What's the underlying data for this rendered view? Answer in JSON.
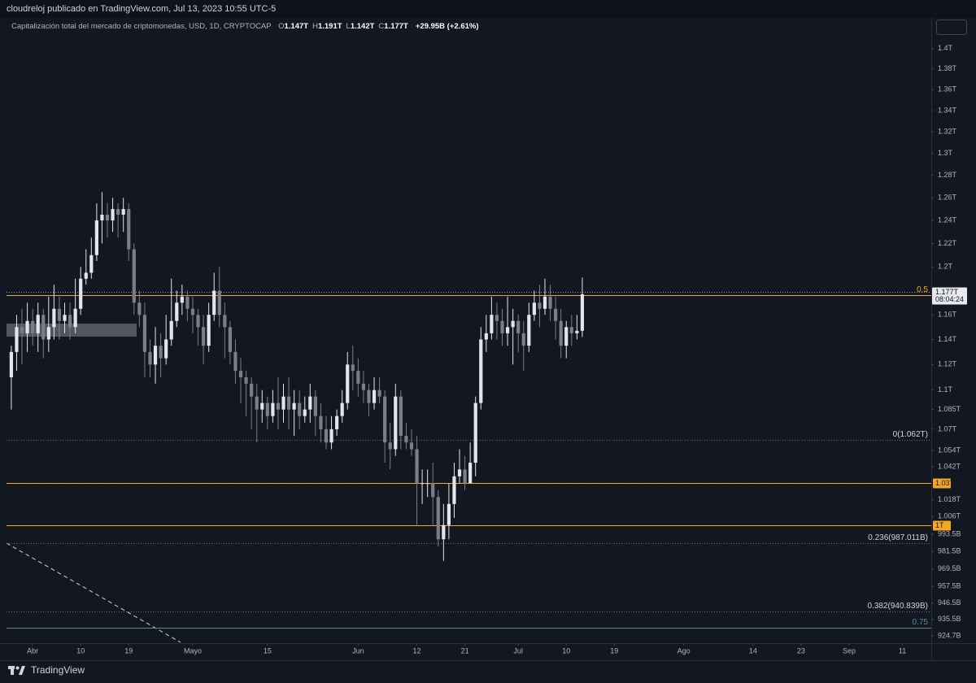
{
  "header": {
    "published": "cloudreloj publicado en TradingView.com, Jul 13, 2023 10:55 UTC-5"
  },
  "footer": {
    "brand": "TradingView"
  },
  "chart_data": {
    "type": "candlestick",
    "legend": {
      "symbol": "Capitalización total del mercado de criptomonedas, USD, 1D, CRYPTOCAP",
      "ohlc": [
        {
          "label": "O",
          "value": "1.147T"
        },
        {
          "label": "H",
          "value": "1.191T"
        },
        {
          "label": "L",
          "value": "1.142T"
        },
        {
          "label": "C",
          "value": "1.177T"
        }
      ],
      "change": "+29.95B (+2.61%)"
    },
    "log_scale": true,
    "up_color": "#e3e5ea",
    "down_color": "#7b7e88",
    "xlim": [
      -4.9,
      168.4
    ],
    "xticks": [
      {
        "value": 0,
        "label": "Abr"
      },
      {
        "value": 9,
        "label": "10"
      },
      {
        "value": 18,
        "label": "19"
      },
      {
        "value": 30,
        "label": "Mayo"
      },
      {
        "value": 44,
        "label": "15"
      },
      {
        "value": 61,
        "label": "Jun"
      },
      {
        "value": 72,
        "label": "12"
      },
      {
        "value": 81,
        "label": "21"
      },
      {
        "value": 91,
        "label": "Jul"
      },
      {
        "value": 100,
        "label": "10"
      },
      {
        "value": 109,
        "label": "19"
      },
      {
        "value": 122,
        "label": "Ago"
      },
      {
        "value": 135,
        "label": "14"
      },
      {
        "value": 144,
        "label": "23"
      },
      {
        "value": 153,
        "label": "Sep"
      },
      {
        "value": 163,
        "label": "11"
      }
    ],
    "ylim": [
      920.5,
      1429
    ],
    "yticks": [
      {
        "value": 1400,
        "label": "1.4T"
      },
      {
        "value": 1380,
        "label": "1.38T"
      },
      {
        "value": 1360,
        "label": "1.36T"
      },
      {
        "value": 1340,
        "label": "1.34T"
      },
      {
        "value": 1320,
        "label": "1.32T"
      },
      {
        "value": 1300,
        "label": "1.3T"
      },
      {
        "value": 1280,
        "label": "1.28T"
      },
      {
        "value": 1260,
        "label": "1.26T"
      },
      {
        "value": 1240,
        "label": "1.24T"
      },
      {
        "value": 1220,
        "label": "1.22T"
      },
      {
        "value": 1200,
        "label": "1.2T"
      },
      {
        "value": 1160,
        "label": "1.16T"
      },
      {
        "value": 1140,
        "label": "1.14T"
      },
      {
        "value": 1120,
        "label": "1.12T"
      },
      {
        "value": 1100,
        "label": "1.1T"
      },
      {
        "value": 1085,
        "label": "1.085T"
      },
      {
        "value": 1070,
        "label": "1.07T"
      },
      {
        "value": 1054,
        "label": "1.054T"
      },
      {
        "value": 1042,
        "label": "1.042T"
      },
      {
        "value": 1018,
        "label": "1.018T"
      },
      {
        "value": 1006,
        "label": "1.006T"
      },
      {
        "value": 993.5,
        "label": "993.5B"
      },
      {
        "value": 981.5,
        "label": "981.5B"
      },
      {
        "value": 969.5,
        "label": "969.5B"
      },
      {
        "value": 957.5,
        "label": "957.5B"
      },
      {
        "value": 946.5,
        "label": "946.5B"
      },
      {
        "value": 935.5,
        "label": "935.5B"
      },
      {
        "value": 924.7,
        "label": "924.7B"
      }
    ],
    "levels": [
      {
        "label": "0.5",
        "value": 1176,
        "color": "#f5a623",
        "style": "solid",
        "label_style": "inline"
      },
      {
        "label": "0(1.062T)",
        "value": 1062,
        "color": "#6b6e78",
        "style": "dotted",
        "label_style": "inline"
      },
      {
        "label": "1.03T",
        "value": 1030,
        "color": "#f5a623",
        "style": "solid",
        "label_style": "box"
      },
      {
        "label": "1T",
        "value": 1000,
        "color": "#f5a623",
        "style": "solid",
        "label_style": "box"
      },
      {
        "label": "0.236(987.011B)",
        "value": 987.011,
        "color": "#6b6e78",
        "style": "dotted",
        "label_style": "inline"
      },
      {
        "label": "0.382(940.839B)",
        "value": 940.839,
        "color": "#6b6e78",
        "style": "dotted",
        "label_style": "inline"
      },
      {
        "label": "0.75",
        "value": 930,
        "color": "#5d8a93",
        "style": "solid",
        "label_style": "inline"
      }
    ],
    "last_price": {
      "value": 1177,
      "label": "1.177T",
      "countdown": "08:04:24"
    },
    "x": [
      -4,
      -3,
      -2,
      -1,
      0,
      1,
      2,
      3,
      4,
      5,
      6,
      7,
      8,
      9,
      10,
      11,
      12,
      13,
      14,
      15,
      16,
      17,
      18,
      19,
      20,
      21,
      22,
      23,
      24,
      25,
      26,
      27,
      28,
      29,
      30,
      31,
      32,
      33,
      34,
      35,
      36,
      37,
      38,
      39,
      40,
      41,
      42,
      43,
      44,
      45,
      46,
      47,
      48,
      49,
      50,
      51,
      52,
      53,
      54,
      55,
      56,
      57,
      58,
      59,
      60,
      61,
      62,
      63,
      64,
      65,
      66,
      67,
      68,
      69,
      70,
      71,
      72,
      73,
      74,
      75,
      76,
      77,
      78,
      79,
      80,
      81,
      82,
      83,
      84,
      85,
      86,
      87,
      88,
      89,
      90,
      91,
      92,
      93,
      94,
      95,
      96,
      97,
      98,
      99,
      100,
      101,
      102,
      103
    ],
    "open": [
      1110,
      1130,
      1150,
      1145,
      1155,
      1145,
      1160,
      1140,
      1150,
      1165,
      1155,
      1160,
      1150,
      1165,
      1190,
      1195,
      1210,
      1240,
      1245,
      1240,
      1250,
      1245,
      1250,
      1215,
      1170,
      1160,
      1130,
      1120,
      1135,
      1125,
      1140,
      1155,
      1170,
      1175,
      1165,
      1160,
      1150,
      1135,
      1160,
      1180,
      1160,
      1150,
      1130,
      1115,
      1110,
      1105,
      1095,
      1085,
      1090,
      1080,
      1090,
      1085,
      1095,
      1085,
      1090,
      1080,
      1085,
      1095,
      1080,
      1070,
      1060,
      1070,
      1080,
      1090,
      1120,
      1115,
      1105,
      1100,
      1090,
      1100,
      1095,
      1060,
      1055,
      1095,
      1065,
      1060,
      1055,
      1030,
      1030,
      1030,
      1020,
      990,
      1000,
      1015,
      1035,
      1040,
      1030,
      1045,
      1090,
      1140,
      1145,
      1160,
      1155,
      1145,
      1150,
      1155,
      1145,
      1135,
      1160,
      1170,
      1165,
      1175,
      1165,
      1155,
      1135,
      1150,
      1145,
      1147
    ],
    "high": [
      1135,
      1160,
      1165,
      1170,
      1165,
      1170,
      1165,
      1175,
      1185,
      1175,
      1170,
      1170,
      1190,
      1200,
      1215,
      1225,
      1255,
      1265,
      1255,
      1260,
      1255,
      1260,
      1255,
      1220,
      1180,
      1170,
      1140,
      1150,
      1145,
      1160,
      1190,
      1180,
      1185,
      1180,
      1175,
      1165,
      1160,
      1170,
      1195,
      1200,
      1170,
      1155,
      1140,
      1125,
      1115,
      1110,
      1105,
      1100,
      1095,
      1100,
      1110,
      1105,
      1110,
      1100,
      1100,
      1095,
      1105,
      1100,
      1090,
      1080,
      1080,
      1085,
      1100,
      1130,
      1135,
      1125,
      1115,
      1105,
      1110,
      1110,
      1100,
      1075,
      1105,
      1100,
      1075,
      1070,
      1065,
      1040,
      1040,
      1045,
      1025,
      1015,
      1030,
      1045,
      1055,
      1050,
      1060,
      1095,
      1150,
      1160,
      1175,
      1170,
      1165,
      1175,
      1165,
      1160,
      1155,
      1170,
      1180,
      1185,
      1190,
      1185,
      1175,
      1165,
      1155,
      1160,
      1160,
      1191
    ],
    "low": [
      1085,
      1115,
      1120,
      1130,
      1135,
      1130,
      1125,
      1130,
      1140,
      1140,
      1145,
      1140,
      1145,
      1160,
      1185,
      1190,
      1205,
      1220,
      1225,
      1230,
      1225,
      1230,
      1205,
      1160,
      1150,
      1110,
      1110,
      1105,
      1110,
      1120,
      1135,
      1150,
      1160,
      1155,
      1145,
      1135,
      1120,
      1130,
      1155,
      1150,
      1125,
      1120,
      1105,
      1090,
      1080,
      1070,
      1060,
      1075,
      1070,
      1075,
      1070,
      1075,
      1070,
      1065,
      1070,
      1075,
      1075,
      1065,
      1060,
      1055,
      1055,
      1065,
      1075,
      1085,
      1100,
      1095,
      1090,
      1080,
      1085,
      1090,
      1045,
      1040,
      1050,
      1055,
      1055,
      1050,
      1000,
      1015,
      1020,
      1000,
      985,
      975,
      990,
      1005,
      1030,
      1025,
      1030,
      1035,
      1085,
      1130,
      1140,
      1140,
      1135,
      1135,
      1120,
      1130,
      1115,
      1130,
      1155,
      1150,
      1160,
      1155,
      1140,
      1125,
      1125,
      1135,
      1140,
      1142
    ],
    "close": [
      1130,
      1150,
      1145,
      1155,
      1145,
      1160,
      1140,
      1150,
      1165,
      1155,
      1160,
      1150,
      1165,
      1190,
      1195,
      1210,
      1240,
      1245,
      1240,
      1250,
      1245,
      1250,
      1215,
      1170,
      1160,
      1130,
      1120,
      1135,
      1125,
      1140,
      1155,
      1170,
      1175,
      1165,
      1160,
      1150,
      1135,
      1160,
      1180,
      1160,
      1150,
      1130,
      1115,
      1110,
      1105,
      1095,
      1085,
      1090,
      1080,
      1090,
      1085,
      1095,
      1085,
      1090,
      1080,
      1085,
      1095,
      1080,
      1070,
      1060,
      1070,
      1080,
      1090,
      1120,
      1115,
      1105,
      1100,
      1090,
      1100,
      1095,
      1060,
      1055,
      1095,
      1065,
      1060,
      1055,
      1030,
      1030,
      1030,
      1020,
      990,
      1000,
      1015,
      1035,
      1040,
      1030,
      1045,
      1090,
      1140,
      1145,
      1160,
      1155,
      1145,
      1150,
      1155,
      1145,
      1135,
      1160,
      1170,
      1165,
      1175,
      1165,
      1155,
      1135,
      1150,
      1145,
      1147,
      1177
    ]
  }
}
